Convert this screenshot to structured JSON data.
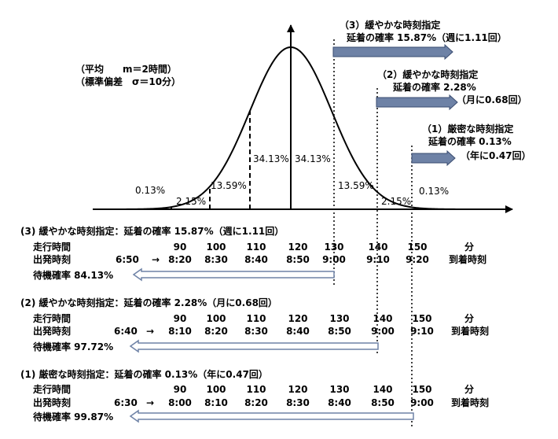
{
  "params": {
    "mean": "（平均　　m＝2時間）",
    "sigma": "（標準偏差　σ＝10分）"
  },
  "callouts": [
    {
      "title": "（3）緩やかな時刻指定",
      "rate": "延着の確率 15.87%（週に1.11回）"
    },
    {
      "title": "（2）緩やかな時刻指定",
      "rate": "延着の確率 2.28%",
      "freq": "（月に0.68回）"
    },
    {
      "title": "（1）厳密な時刻指定",
      "rate": "延着の確率 0.13%",
      "freq": "（年に0.47回）"
    }
  ],
  "curve_labels": {
    "left_tail": "0.13%",
    "left_2": "2.15%",
    "left_1": "13.59%",
    "left_center": "34.13%",
    "right_center": "34.13%",
    "right_1": "13.59%",
    "right_2": "2.15%",
    "right_tail": "0.13%"
  },
  "tables": [
    {
      "header": "(3) 緩やかな時刻指定：延着の確率 15.87%（週に1.11回）",
      "row1_label": "走行時間",
      "row2_label": "出発時刻",
      "row3_label": "待機確率 84.13%",
      "start": "6:50",
      "arrow": "→",
      "times": [
        "90",
        "100",
        "110",
        "120",
        "130",
        "140",
        "150"
      ],
      "unit": "分",
      "departures": [
        "8:20",
        "8:30",
        "8:40",
        "8:50",
        "9:00",
        "9:10",
        "9:20"
      ],
      "arrival_label": "到着時刻"
    },
    {
      "header": "(2) 緩やかな時刻指定：延着の確率 2.28%（月に0.68回）",
      "row1_label": "走行時間",
      "row2_label": "出発時刻",
      "row3_label": "待機確率 97.72%",
      "start": "6:40",
      "arrow": "→",
      "times": [
        "90",
        "100",
        "110",
        "120",
        "130",
        "140",
        "150"
      ],
      "unit": "分",
      "departures": [
        "8:10",
        "8:20",
        "8:30",
        "8:40",
        "8:50",
        "9:00",
        "9:10"
      ],
      "arrival_label": "到着時刻"
    },
    {
      "header": "(1) 厳密な時刻指定：延着の確率 0.13%（年に0.47回）",
      "row1_label": "走行時間",
      "row2_label": "出発時刻",
      "row3_label": "待機確率 99.87%",
      "start": "6:30",
      "arrow": "→",
      "times": [
        "90",
        "100",
        "110",
        "120",
        "130",
        "140",
        "150"
      ],
      "unit": "分",
      "departures": [
        "8:00",
        "8:10",
        "8:20",
        "8:30",
        "8:40",
        "8:50",
        "9:00"
      ],
      "arrival_label": "到着時刻"
    }
  ],
  "colors": {
    "arrow_fill": "#6e82a6",
    "arrow_stroke": "#3a4c70",
    "line": "#000000"
  }
}
